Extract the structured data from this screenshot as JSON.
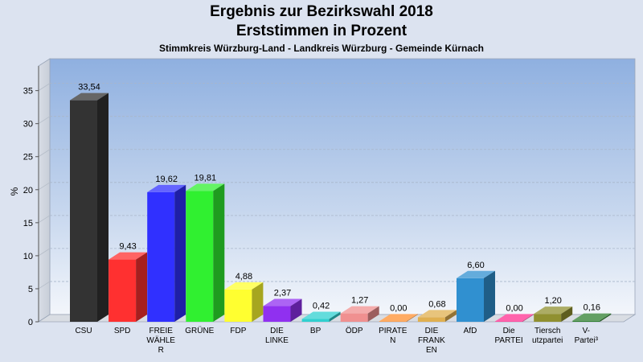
{
  "chart_data": {
    "type": "bar",
    "title": "Ergebnis zur Bezirkswahl 2018",
    "subtitle": "Erststimmen in Prozent",
    "subsubtitle": "Stimmkreis Würzburg-Land - Landkreis Würzburg - Gemeinde Kürnach",
    "ylabel": "%",
    "xlabel": "",
    "ylim": [
      0,
      38
    ],
    "yticks": [
      "0",
      "5",
      "10",
      "15",
      "20",
      "25",
      "30",
      "35"
    ],
    "grid": true,
    "categories": [
      [
        "CSU"
      ],
      [
        "SPD"
      ],
      [
        "FREIE",
        "WÄHLE",
        "R"
      ],
      [
        "GRÜNE"
      ],
      [
        "FDP"
      ],
      [
        "DIE",
        "LINKE"
      ],
      [
        "BP"
      ],
      [
        "ÖDP"
      ],
      [
        "PIRATE",
        "N"
      ],
      [
        "DIE",
        "FRANK",
        "EN"
      ],
      [
        "AfD"
      ],
      [
        "Die",
        "PARTEI"
      ],
      [
        "Tiersch",
        "utzpartei"
      ],
      [
        "V-",
        "Partei³"
      ]
    ],
    "values": [
      33.54,
      9.43,
      19.62,
      19.81,
      4.88,
      2.37,
      0.42,
      1.27,
      0.0,
      0.68,
      6.6,
      0.0,
      1.2,
      0.16
    ],
    "value_labels": [
      "33,54",
      "9,43",
      "19,62",
      "19,81",
      "4,88",
      "2,37",
      "0,42",
      "1,27",
      "0,00",
      "0,68",
      "6,60",
      "0,00",
      "1,20",
      "0,16"
    ],
    "colors": [
      "#333333",
      "#ff3030",
      "#3030ff",
      "#30f030",
      "#ffff30",
      "#9030f0",
      "#30d0d0",
      "#f09090",
      "#ff9030",
      "#e0b050",
      "#3090d0",
      "#ff3090",
      "#909030",
      "#308030"
    ]
  }
}
